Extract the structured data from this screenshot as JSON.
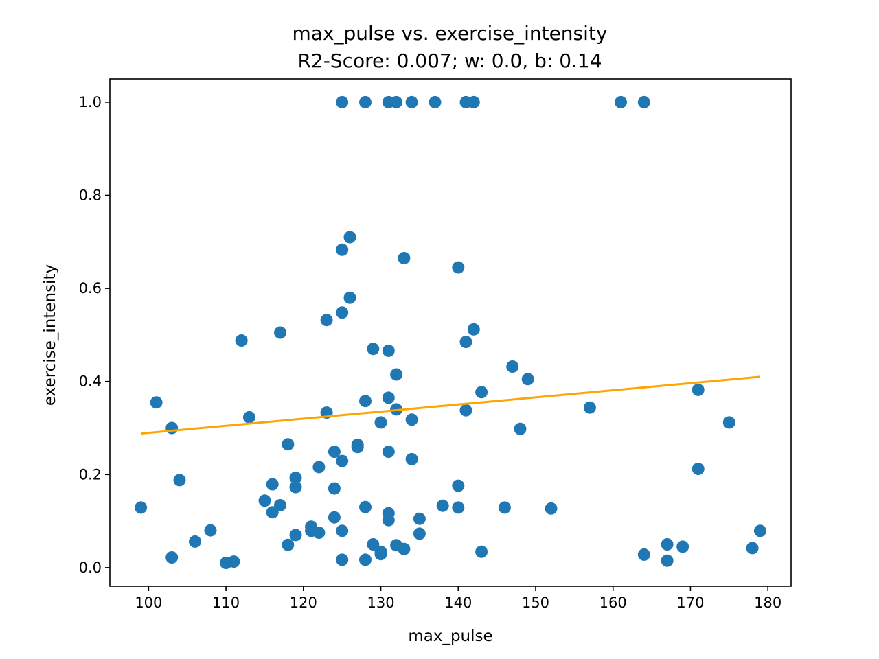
{
  "chart_data": {
    "type": "scatter",
    "title": "max_pulse vs. exercise_intensity",
    "subtitle": "R2-Score: 0.007; w: 0.0, b: 0.14",
    "xlabel": "max_pulse",
    "ylabel": "exercise_intensity",
    "xlim": [
      95,
      183
    ],
    "ylim": [
      -0.04,
      1.05
    ],
    "xticks": [
      100,
      110,
      120,
      130,
      140,
      150,
      160,
      170,
      180
    ],
    "xtick_labels": [
      "100",
      "110",
      "120",
      "130",
      "140",
      "150",
      "160",
      "170",
      "180"
    ],
    "yticks": [
      0.0,
      0.2,
      0.4,
      0.6,
      0.8,
      1.0
    ],
    "ytick_labels": [
      "0.0",
      "0.2",
      "0.4",
      "0.6",
      "0.8",
      "1.0"
    ],
    "grid": false,
    "colors": {
      "points": "#1f77b4",
      "fit_line": "#ffa500"
    },
    "fit_line": {
      "x": [
        99,
        179
      ],
      "y": [
        0.288,
        0.41
      ]
    },
    "points": [
      [
        125,
        1.0
      ],
      [
        128,
        1.0
      ],
      [
        131,
        1.0
      ],
      [
        132,
        1.0
      ],
      [
        134,
        1.0
      ],
      [
        137,
        1.0
      ],
      [
        141,
        1.0
      ],
      [
        142,
        1.0
      ],
      [
        161,
        1.0
      ],
      [
        164,
        1.0
      ],
      [
        126,
        0.71
      ],
      [
        125,
        0.683
      ],
      [
        133,
        0.665
      ],
      [
        140,
        0.645
      ],
      [
        126,
        0.58
      ],
      [
        125,
        0.548
      ],
      [
        123,
        0.532
      ],
      [
        142,
        0.512
      ],
      [
        117,
        0.505
      ],
      [
        112,
        0.488
      ],
      [
        141,
        0.485
      ],
      [
        129,
        0.47
      ],
      [
        131,
        0.466
      ],
      [
        147,
        0.432
      ],
      [
        132,
        0.415
      ],
      [
        149,
        0.405
      ],
      [
        171,
        0.382
      ],
      [
        143,
        0.377
      ],
      [
        131,
        0.365
      ],
      [
        128,
        0.358
      ],
      [
        101,
        0.355
      ],
      [
        157,
        0.344
      ],
      [
        132,
        0.34
      ],
      [
        141,
        0.338
      ],
      [
        123,
        0.333
      ],
      [
        113,
        0.323
      ],
      [
        134,
        0.318
      ],
      [
        130,
        0.312
      ],
      [
        175,
        0.312
      ],
      [
        103,
        0.3
      ],
      [
        148,
        0.298
      ],
      [
        118,
        0.265
      ],
      [
        127,
        0.264
      ],
      [
        127,
        0.259
      ],
      [
        124,
        0.249
      ],
      [
        131,
        0.249
      ],
      [
        134,
        0.233
      ],
      [
        125,
        0.229
      ],
      [
        122,
        0.216
      ],
      [
        171,
        0.212
      ],
      [
        119,
        0.193
      ],
      [
        104,
        0.188
      ],
      [
        116,
        0.179
      ],
      [
        140,
        0.176
      ],
      [
        119,
        0.173
      ],
      [
        124,
        0.17
      ],
      [
        115,
        0.144
      ],
      [
        117,
        0.134
      ],
      [
        138,
        0.133
      ],
      [
        128,
        0.13
      ],
      [
        140,
        0.129
      ],
      [
        99,
        0.129
      ],
      [
        146,
        0.129
      ],
      [
        152,
        0.127
      ],
      [
        116,
        0.119
      ],
      [
        131,
        0.117
      ],
      [
        124,
        0.108
      ],
      [
        135,
        0.105
      ],
      [
        131,
        0.102
      ],
      [
        121,
        0.088
      ],
      [
        179,
        0.079
      ],
      [
        108,
        0.08
      ],
      [
        125,
        0.079
      ],
      [
        121,
        0.079
      ],
      [
        122,
        0.075
      ],
      [
        135,
        0.073
      ],
      [
        119,
        0.07
      ],
      [
        106,
        0.056
      ],
      [
        129,
        0.05
      ],
      [
        167,
        0.05
      ],
      [
        118,
        0.049
      ],
      [
        132,
        0.048
      ],
      [
        169,
        0.045
      ],
      [
        178,
        0.042
      ],
      [
        133,
        0.04
      ],
      [
        143,
        0.034
      ],
      [
        130,
        0.034
      ],
      [
        130,
        0.029
      ],
      [
        164,
        0.028
      ],
      [
        103,
        0.022
      ],
      [
        125,
        0.017
      ],
      [
        128,
        0.017
      ],
      [
        167,
        0.015
      ],
      [
        111,
        0.013
      ],
      [
        110,
        0.01
      ]
    ]
  }
}
